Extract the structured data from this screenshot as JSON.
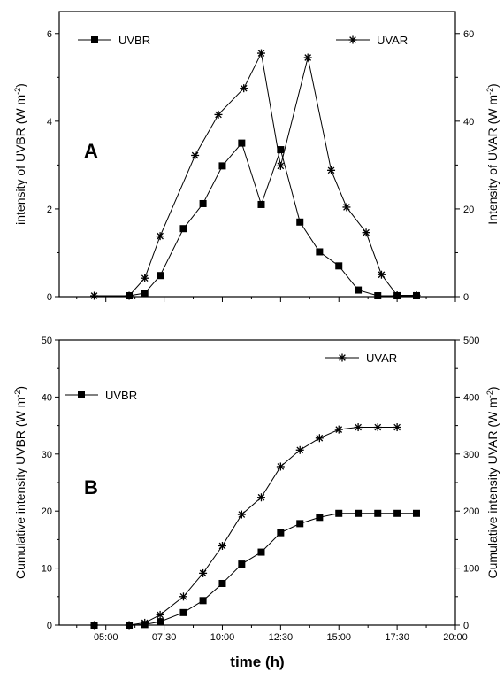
{
  "chart_data": [
    {
      "panel": "A",
      "type": "line",
      "x_labels": [
        "04:30",
        "06:00",
        "06:40",
        "07:20",
        "08:50",
        "09:50",
        "10:55",
        "11:40",
        "12:30",
        "13:40",
        "14:40",
        "15:20",
        "16:10",
        "16:50",
        "17:30",
        "18:20"
      ],
      "x": [
        4.5,
        6.0,
        6.67,
        7.33,
        8.83,
        9.83,
        10.92,
        11.67,
        12.5,
        13.67,
        14.67,
        15.33,
        16.17,
        16.83,
        17.5,
        18.33
      ],
      "series": [
        {
          "name": "UVBR",
          "axis": "left",
          "marker": "square",
          "x": [
            6.0,
            6.67,
            7.33,
            8.33,
            9.17,
            10.0,
            10.83,
            11.67,
            12.5,
            13.33,
            14.17,
            15.0,
            15.83,
            16.67,
            17.5,
            18.33
          ],
          "values": [
            0.02,
            0.08,
            0.48,
            1.55,
            2.12,
            2.98,
            3.5,
            2.1,
            3.35,
            1.7,
            1.02,
            0.7,
            0.15,
            0.02,
            0.02,
            0.02
          ]
        },
        {
          "name": "UVAR",
          "axis": "right",
          "marker": "star",
          "x": [
            4.5,
            6.0,
            6.67,
            7.33,
            8.83,
            9.83,
            10.92,
            11.67,
            12.5,
            13.67,
            14.67,
            15.33,
            16.17,
            16.83,
            17.5,
            18.33
          ],
          "values": [
            0.2,
            0.2,
            4.2,
            13.8,
            32.2,
            41.5,
            47.5,
            55.5,
            29.8,
            54.5,
            28.8,
            20.4,
            14.6,
            5.0,
            0.3,
            0.3
          ]
        }
      ],
      "ylabel_left": "intensity of UVBR (W m",
      "ylabel_right": "Intensity of UVAR (W m",
      "ylabel_sup": "-2",
      "ylim_left": [
        0,
        6.5
      ],
      "ylim_right": [
        0,
        65
      ],
      "yticks_left": [
        "0",
        "2",
        "4",
        "6"
      ],
      "yticks_right": [
        "0",
        "20",
        "40",
        "60"
      ],
      "legend": [
        {
          "label": "UVBR",
          "position": "top-left"
        },
        {
          "label": "UVAR",
          "position": "top-right"
        }
      ]
    },
    {
      "panel": "B",
      "type": "line",
      "series": [
        {
          "name": "UVBR",
          "axis": "left",
          "marker": "square",
          "x": [
            4.5,
            6.0,
            6.67,
            7.33,
            8.33,
            9.17,
            10.0,
            10.83,
            11.67,
            12.5,
            13.33,
            14.17,
            15.0,
            15.83,
            16.67,
            17.5,
            18.33
          ],
          "values": [
            0.0,
            0.0,
            0.1,
            0.6,
            2.2,
            4.3,
            7.3,
            10.7,
            12.8,
            16.2,
            17.8,
            18.9,
            19.6,
            19.6,
            19.6,
            19.6,
            19.6
          ]
        },
        {
          "name": "UVAR",
          "axis": "right",
          "marker": "star",
          "x": [
            4.5,
            6.0,
            6.67,
            7.33,
            8.33,
            9.17,
            10.0,
            10.83,
            11.67,
            12.5,
            13.33,
            14.17,
            15.0,
            15.83,
            16.67,
            17.5
          ],
          "values": [
            0,
            0,
            4,
            18,
            50,
            91,
            139,
            194,
            224,
            278,
            307,
            328,
            343,
            347,
            347,
            347
          ]
        }
      ],
      "ylabel_left": "Cumulative intensity UVBR (W m",
      "ylabel_right": "Cumulative intensity UVAR (W m",
      "ylabel_sup": "-2",
      "ylim_left": [
        0,
        50
      ],
      "ylim_right": [
        0,
        500
      ],
      "yticks_left": [
        "0",
        "10",
        "20",
        "30",
        "40",
        "50"
      ],
      "yticks_right": [
        "0",
        "100",
        "200",
        "300",
        "400",
        "500"
      ],
      "legend": [
        {
          "label": "UVBR",
          "position": "top-left"
        },
        {
          "label": "UVAR",
          "position": "top-right"
        }
      ]
    }
  ],
  "x_axis": {
    "title": "time (h)",
    "range_hours": [
      3.0,
      20.0
    ],
    "tick_labels": [
      "05:00",
      "07:30",
      "10:00",
      "12:30",
      "15:00",
      "17:30",
      "20:00"
    ],
    "tick_values": [
      5.0,
      7.5,
      10.0,
      12.5,
      15.0,
      17.5,
      20.0
    ]
  },
  "panel_letters": [
    "A",
    "B"
  ]
}
